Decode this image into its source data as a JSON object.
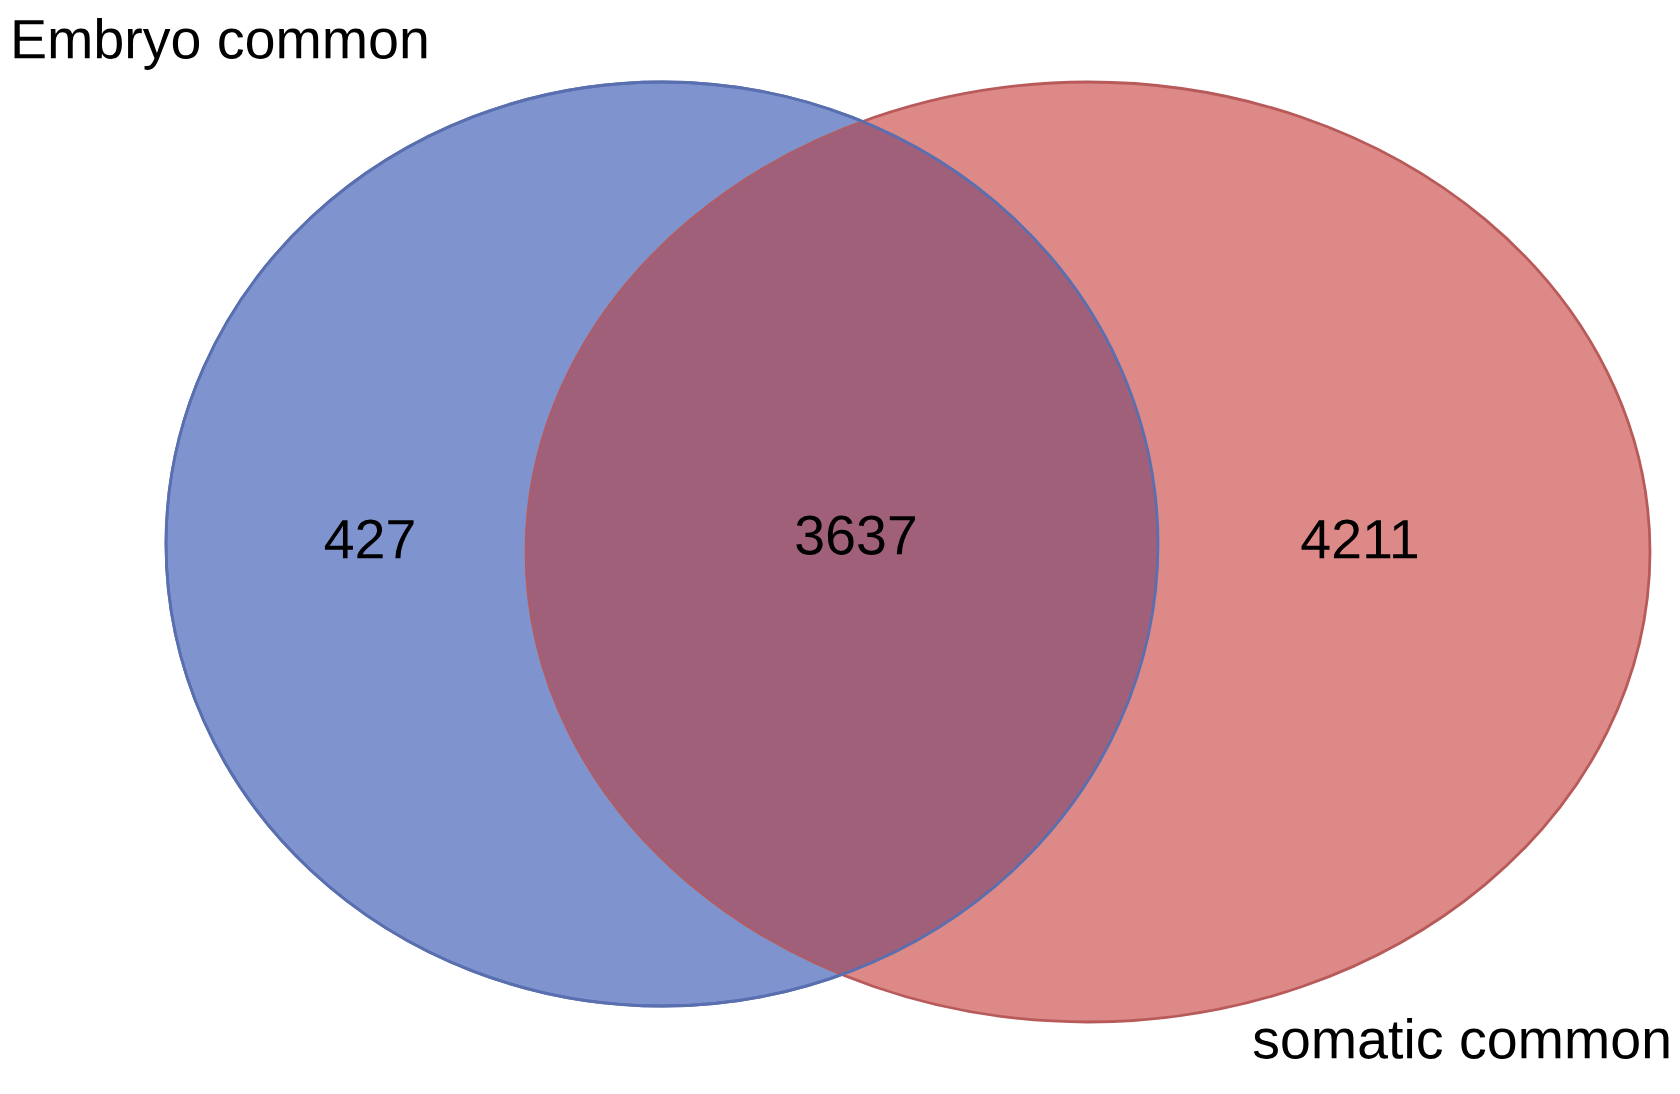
{
  "chart_data": {
    "type": "other",
    "categories": [
      "Embryo common",
      null,
      "somatic common"
    ],
    "values": [
      427,
      3637,
      4211
    ],
    "colors": [
      "#7f94cf",
      "#a0607a",
      "#dc8987"
    ],
    "data_labels": true
  }
}
